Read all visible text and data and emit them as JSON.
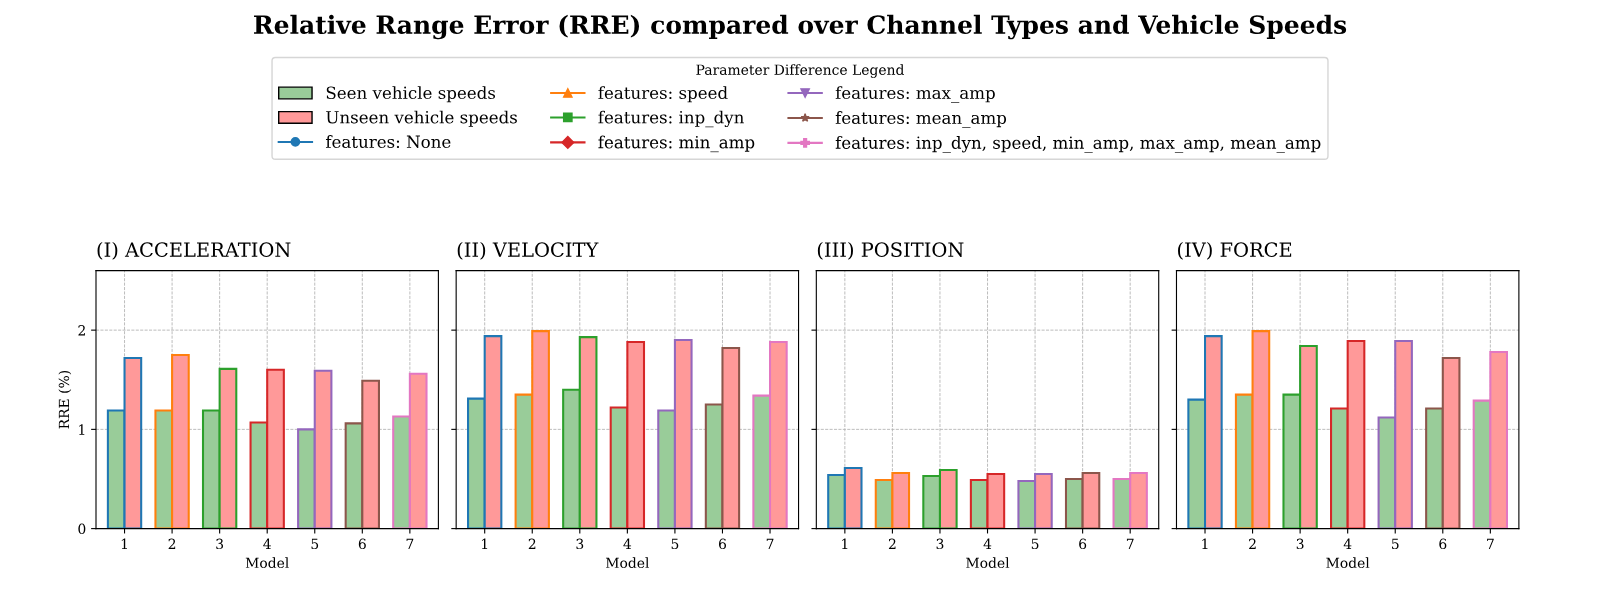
{
  "chart_data": [
    {
      "type": "bar",
      "title": "(I) ACCELERATION",
      "annotations": [
        "Relative Range Error (RRE) compared over Channel Types and Vehicle Speeds"
      ],
      "legend_title": "Parameter Difference Legend",
      "legend": "top",
      "xlabel": "Model",
      "ylabel": "RRE (%)",
      "categories": [
        "1",
        "2",
        "3",
        "4",
        "5",
        "6",
        "7"
      ],
      "ylim": [
        0,
        2.6
      ],
      "yticks": [
        0,
        1,
        2
      ],
      "grid": true,
      "series": [
        {
          "name": "Seen vehicle speeds",
          "color": "#99cc99",
          "values": [
            1.19,
            1.19,
            1.19,
            1.07,
            1.0,
            1.06,
            1.13
          ]
        },
        {
          "name": "Unseen vehicle speeds",
          "color": "#ff9999",
          "values": [
            1.72,
            1.75,
            1.61,
            1.6,
            1.59,
            1.49,
            1.56
          ]
        },
        {
          "name": "features: None",
          "type": "line",
          "color": "#1f77b4",
          "marker": "circle",
          "values": [
            null,
            null,
            null,
            null,
            null,
            null,
            null
          ]
        },
        {
          "name": "features: speed",
          "type": "line",
          "color": "#ff7f0e",
          "marker": "triangle",
          "values": [
            null,
            null,
            null,
            null,
            null,
            null,
            null
          ]
        },
        {
          "name": "features: inp_dyn",
          "type": "line",
          "color": "#2ca02c",
          "marker": "square",
          "values": [
            null,
            null,
            null,
            null,
            null,
            null,
            null
          ]
        },
        {
          "name": "features: min_amp",
          "type": "line",
          "color": "#d62728",
          "marker": "diamond",
          "values": [
            null,
            null,
            null,
            null,
            null,
            null,
            null
          ]
        },
        {
          "name": "features: max_amp",
          "type": "line",
          "color": "#9467bd",
          "marker": "triangle_down",
          "values": [
            null,
            null,
            null,
            null,
            null,
            null,
            null
          ]
        },
        {
          "name": "features: mean_amp",
          "type": "line",
          "color": "#8c564b",
          "marker": "star",
          "values": [
            null,
            null,
            null,
            null,
            null,
            null,
            null
          ]
        },
        {
          "name": "features: inp_dyn, speed, min_amp, max_amp, mean_amp",
          "type": "line",
          "color": "#e377c2",
          "marker": "cross",
          "values": [
            null,
            null,
            null,
            null,
            null,
            null,
            null
          ]
        }
      ]
    },
    {
      "type": "bar",
      "title": "(II) VELOCITY",
      "xlabel": "Model",
      "tick_labels": "x",
      "categories": [
        "1",
        "2",
        "3",
        "4",
        "5",
        "6",
        "7"
      ],
      "ylim": [
        0,
        2.6
      ],
      "yticks": [
        0,
        1,
        2
      ],
      "grid": true,
      "series": [
        {
          "color": "#99cc99",
          "values": [
            1.31,
            1.35,
            1.4,
            1.22,
            1.19,
            1.25,
            1.34
          ]
        },
        {
          "color": "#ff9999",
          "values": [
            1.94,
            1.99,
            1.93,
            1.88,
            1.9,
            1.82,
            1.88
          ]
        },
        {
          "type": "line",
          "color": "#1f77b4",
          "values": [
            null,
            null,
            null,
            null,
            null,
            null,
            null
          ]
        },
        {
          "type": "line",
          "color": "#ff7f0e",
          "values": [
            null,
            null,
            null,
            null,
            null,
            null,
            null
          ]
        },
        {
          "type": "line",
          "color": "#2ca02c",
          "values": [
            null,
            null,
            null,
            null,
            null,
            null,
            null
          ]
        },
        {
          "type": "line",
          "color": "#d62728",
          "values": [
            null,
            null,
            null,
            null,
            null,
            null,
            null
          ]
        },
        {
          "type": "line",
          "color": "#9467bd",
          "values": [
            null,
            null,
            null,
            null,
            null,
            null,
            null
          ]
        },
        {
          "type": "line",
          "color": "#8c564b",
          "values": [
            null,
            null,
            null,
            null,
            null,
            null,
            null
          ]
        },
        {
          "type": "line",
          "color": "#e377c2",
          "values": [
            null,
            null,
            null,
            null,
            null,
            null,
            null
          ]
        }
      ]
    },
    {
      "type": "bar",
      "title": "(III) POSITION",
      "xlabel": "Model",
      "tick_labels": "x",
      "categories": [
        "1",
        "2",
        "3",
        "4",
        "5",
        "6",
        "7"
      ],
      "ylim": [
        0,
        2.6
      ],
      "yticks": [
        0,
        1,
        2
      ],
      "grid": true,
      "series": [
        {
          "color": "#99cc99",
          "values": [
            0.54,
            0.49,
            0.53,
            0.49,
            0.48,
            0.5,
            0.5
          ]
        },
        {
          "color": "#ff9999",
          "values": [
            0.61,
            0.56,
            0.59,
            0.55,
            0.55,
            0.56,
            0.56
          ]
        },
        {
          "type": "line",
          "color": "#1f77b4",
          "values": [
            null,
            null,
            null,
            null,
            null,
            null,
            null
          ]
        },
        {
          "type": "line",
          "color": "#ff7f0e",
          "values": [
            null,
            null,
            null,
            null,
            null,
            null,
            null
          ]
        },
        {
          "type": "line",
          "color": "#2ca02c",
          "values": [
            null,
            null,
            null,
            null,
            null,
            null,
            null
          ]
        },
        {
          "type": "line",
          "color": "#d62728",
          "values": [
            null,
            null,
            null,
            null,
            null,
            null,
            null
          ]
        },
        {
          "type": "line",
          "color": "#9467bd",
          "values": [
            null,
            null,
            null,
            null,
            null,
            null,
            null
          ]
        },
        {
          "type": "line",
          "color": "#8c564b",
          "values": [
            null,
            null,
            null,
            null,
            null,
            null,
            null
          ]
        },
        {
          "type": "line",
          "color": "#e377c2",
          "values": [
            null,
            null,
            null,
            null,
            null,
            null,
            null
          ]
        }
      ]
    },
    {
      "type": "bar",
      "title": "(IV) FORCE",
      "xlabel": "Model",
      "tick_labels": "x",
      "categories": [
        "1",
        "2",
        "3",
        "4",
        "5",
        "6",
        "7"
      ],
      "ylim": [
        0,
        2.6
      ],
      "yticks": [
        0,
        1,
        2
      ],
      "grid": true,
      "series": [
        {
          "color": "#99cc99",
          "values": [
            1.3,
            1.35,
            1.35,
            1.21,
            1.12,
            1.21,
            1.29
          ]
        },
        {
          "color": "#ff9999",
          "values": [
            1.94,
            1.99,
            1.84,
            1.89,
            1.89,
            1.72,
            1.78
          ]
        },
        {
          "type": "line",
          "color": "#1f77b4",
          "values": [
            null,
            null,
            null,
            null,
            null,
            null,
            null
          ]
        },
        {
          "type": "line",
          "color": "#ff7f0e",
          "values": [
            null,
            null,
            null,
            null,
            null,
            null,
            null
          ]
        },
        {
          "type": "line",
          "color": "#2ca02c",
          "values": [
            null,
            null,
            null,
            null,
            null,
            null,
            null
          ]
        },
        {
          "type": "line",
          "color": "#d62728",
          "values": [
            null,
            null,
            null,
            null,
            null,
            null,
            null
          ]
        },
        {
          "type": "line",
          "color": "#9467bd",
          "values": [
            null,
            null,
            null,
            null,
            null,
            null,
            null
          ]
        },
        {
          "type": "line",
          "color": "#8c564b",
          "values": [
            null,
            null,
            null,
            null,
            null,
            null,
            null
          ]
        },
        {
          "type": "line",
          "color": "#e377c2",
          "values": [
            null,
            null,
            null,
            null,
            null,
            null,
            null
          ]
        }
      ]
    }
  ]
}
